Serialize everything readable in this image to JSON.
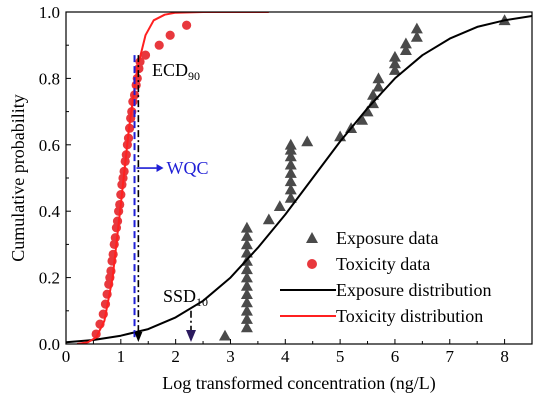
{
  "chart_data": {
    "type": "scatter",
    "title": "",
    "xlabel": "Log transformed concentration (ng/L)",
    "ylabel": "Cumulative probability",
    "xlim": [
      0,
      8.5
    ],
    "ylim": [
      0,
      1.0
    ],
    "x_ticks": [
      "0",
      "1",
      "2",
      "3",
      "4",
      "5",
      "6",
      "7",
      "8"
    ],
    "y_ticks": [
      "0.0",
      "0.2",
      "0.4",
      "0.6",
      "0.8",
      "1.0"
    ],
    "legend_position": "bottom-right",
    "legend": [
      {
        "label": "Exposure data",
        "marker": "triangle",
        "color": "#4a4a4a"
      },
      {
        "label": "Toxicity data",
        "marker": "circle",
        "color": "#e8383d"
      },
      {
        "label": "Exposure distribution",
        "marker": "line",
        "color": "#000000"
      },
      {
        "label": "Toxicity distribution",
        "marker": "line",
        "color": "#ff2020"
      }
    ],
    "series": [
      {
        "name": "Exposure data",
        "type": "scatter",
        "marker": "triangle",
        "color": "#4a4a4a",
        "x": [
          2.9,
          3.3,
          3.3,
          3.3,
          3.3,
          3.3,
          3.3,
          3.3,
          3.3,
          3.3,
          3.3,
          3.3,
          3.3,
          3.3,
          3.7,
          3.9,
          4.1,
          4.1,
          4.1,
          4.1,
          4.1,
          4.1,
          4.1,
          4.1,
          4.4,
          5.0,
          5.2,
          5.4,
          5.5,
          5.6,
          5.6,
          5.7,
          5.7,
          6.0,
          6.0,
          6.0,
          6.2,
          6.2,
          6.4,
          6.4,
          8.0
        ],
        "y": [
          0.025,
          0.05,
          0.075,
          0.1,
          0.125,
          0.15,
          0.175,
          0.2,
          0.225,
          0.25,
          0.275,
          0.3,
          0.325,
          0.35,
          0.375,
          0.415,
          0.44,
          0.465,
          0.49,
          0.515,
          0.54,
          0.565,
          0.585,
          0.6,
          0.61,
          0.625,
          0.65,
          0.675,
          0.7,
          0.725,
          0.75,
          0.775,
          0.8,
          0.825,
          0.845,
          0.865,
          0.885,
          0.905,
          0.925,
          0.95,
          0.975
        ]
      },
      {
        "name": "Toxicity data",
        "type": "scatter",
        "marker": "circle",
        "color": "#e8383d",
        "x": [
          0.55,
          0.62,
          0.68,
          0.72,
          0.75,
          0.78,
          0.8,
          0.82,
          0.84,
          0.86,
          0.88,
          0.9,
          0.92,
          0.94,
          0.96,
          0.98,
          1.0,
          1.02,
          1.04,
          1.06,
          1.08,
          1.1,
          1.12,
          1.14,
          1.16,
          1.18,
          1.2,
          1.22,
          1.25,
          1.28,
          1.3,
          1.33,
          1.35,
          1.45,
          1.7,
          1.9,
          2.2
        ],
        "y": [
          0.03,
          0.06,
          0.09,
          0.12,
          0.15,
          0.18,
          0.2,
          0.22,
          0.25,
          0.27,
          0.3,
          0.32,
          0.35,
          0.37,
          0.4,
          0.42,
          0.45,
          0.48,
          0.5,
          0.52,
          0.55,
          0.57,
          0.6,
          0.62,
          0.65,
          0.68,
          0.7,
          0.73,
          0.75,
          0.78,
          0.8,
          0.83,
          0.85,
          0.87,
          0.9,
          0.93,
          0.96
        ]
      },
      {
        "name": "Exposure distribution",
        "type": "line",
        "color": "#000000",
        "x": [
          0,
          0.5,
          1.0,
          1.5,
          2.0,
          2.5,
          3.0,
          3.5,
          4.0,
          4.5,
          5.0,
          5.5,
          6.0,
          6.5,
          7.0,
          7.5,
          8.0,
          8.5
        ],
        "y": [
          0.005,
          0.012,
          0.025,
          0.045,
          0.08,
          0.13,
          0.2,
          0.29,
          0.39,
          0.5,
          0.61,
          0.71,
          0.8,
          0.87,
          0.92,
          0.955,
          0.975,
          0.988
        ]
      },
      {
        "name": "Toxicity distribution",
        "type": "line",
        "color": "#ff2020",
        "x": [
          0.2,
          0.4,
          0.55,
          0.7,
          0.85,
          1.0,
          1.15,
          1.3,
          1.45,
          1.6,
          1.8,
          2.0,
          2.5,
          3.0,
          3.7
        ],
        "y": [
          0.0,
          0.005,
          0.02,
          0.07,
          0.2,
          0.42,
          0.65,
          0.83,
          0.93,
          0.975,
          0.992,
          0.998,
          1.0,
          1.0,
          1.0
        ]
      }
    ],
    "annotations": [
      {
        "text_main": "ECD",
        "text_sub": "90",
        "x": 1.32
      },
      {
        "text_main": "SSD",
        "text_sub": "10",
        "x": 2.28
      },
      {
        "text_main": "WQC",
        "arrow": "right",
        "color": "#1f1fd6"
      }
    ],
    "reference_lines": [
      {
        "name": "WQC",
        "x": 1.25,
        "y_top": 0.87,
        "style": "dashed",
        "color": "#1f1fd6"
      },
      {
        "name": "ECD90",
        "x": 1.32,
        "y_top": 0.87,
        "style": "dash-dot",
        "color": "#000000"
      },
      {
        "name": "SSD10",
        "x": 2.28,
        "y_top": 0.1,
        "style": "dash-dot",
        "color": "#000000"
      }
    ]
  }
}
